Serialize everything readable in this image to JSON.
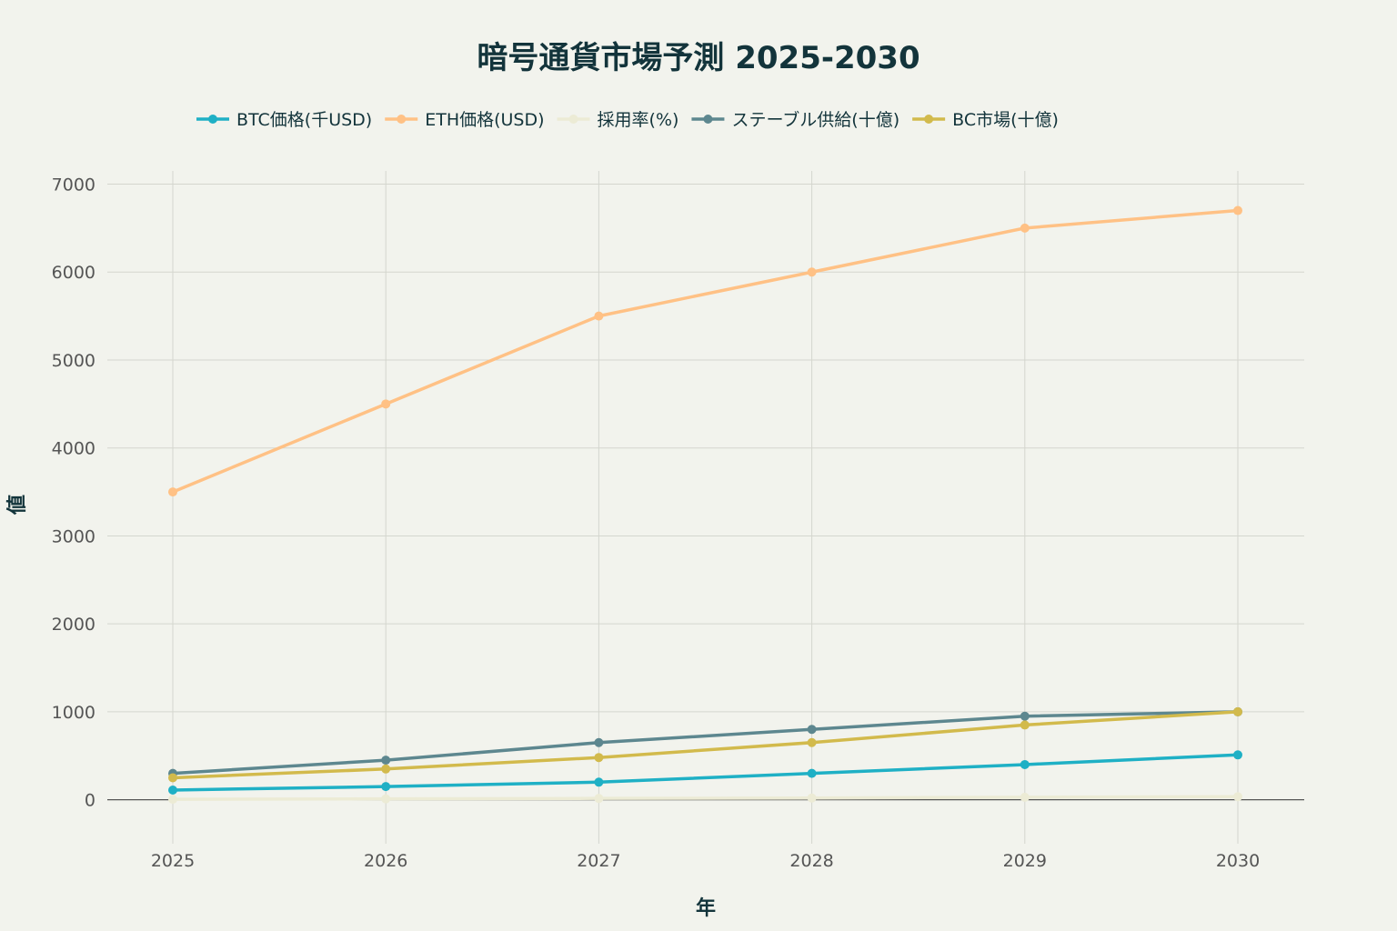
{
  "chart_data": {
    "type": "line",
    "title": "暗号通貨市場予測 2025-2030",
    "xlabel": "年",
    "ylabel": "値",
    "categories": [
      "2025",
      "2026",
      "2027",
      "2028",
      "2029",
      "2030"
    ],
    "ylim": [
      -500,
      7150
    ],
    "yticks": [
      0,
      1000,
      2000,
      3000,
      4000,
      5000,
      6000,
      7000
    ],
    "grid": true,
    "legend_position": "top",
    "series": [
      {
        "name": "BTC価格(千USD)",
        "color": "#1fb0c5",
        "values": [
          110,
          150,
          200,
          300,
          400,
          510
        ]
      },
      {
        "name": "ETH価格(USD)",
        "color": "#ffc185",
        "values": [
          3500,
          4500,
          5500,
          6000,
          6500,
          6700
        ]
      },
      {
        "name": "採用率(%)",
        "color": "#ecebd5",
        "values": [
          5,
          10,
          15,
          20,
          28,
          35
        ]
      },
      {
        "name": "ステーブル供給(十億)",
        "color": "#5d878f",
        "values": [
          300,
          450,
          650,
          800,
          950,
          1000
        ]
      },
      {
        "name": "BC市場(十億)",
        "color": "#d2ba4c",
        "values": [
          250,
          350,
          480,
          650,
          850,
          1000
        ]
      }
    ]
  }
}
